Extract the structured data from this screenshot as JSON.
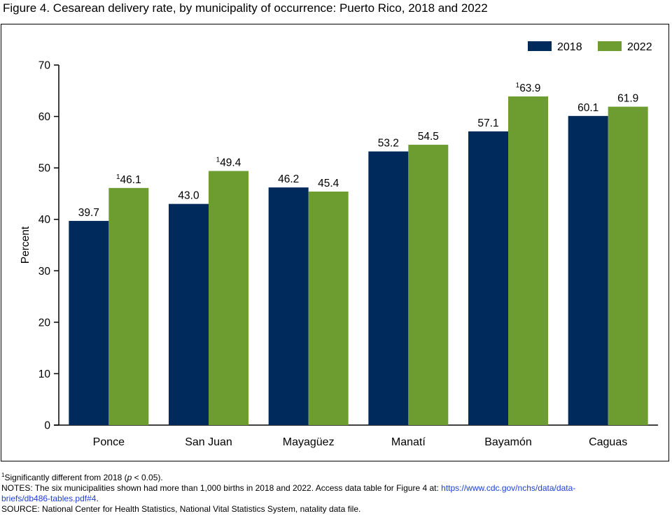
{
  "title": "Figure 4. Cesarean delivery rate, by municipality of occurrence: Puerto Rico, 2018 and 2022",
  "chart_data": {
    "type": "bar",
    "title": "Figure 4. Cesarean delivery rate, by municipality of occurrence: Puerto Rico, 2018 and 2022",
    "xlabel": "",
    "ylabel": "Percent",
    "ylim": [
      0,
      70
    ],
    "yticks": [
      0,
      10,
      20,
      30,
      40,
      50,
      60,
      70
    ],
    "grid": false,
    "legend_position": "top-right",
    "categories": [
      "Ponce",
      "San Juan",
      "Mayagüez",
      "Manatí",
      "Bayamón",
      "Caguas"
    ],
    "series": [
      {
        "name": "2018",
        "color": "#002a5c",
        "values": [
          39.7,
          43.0,
          46.2,
          53.2,
          57.1,
          60.1
        ],
        "labels": [
          "39.7",
          "43.0",
          "46.2",
          "53.2",
          "57.1",
          "60.1"
        ],
        "footnote_marks": [
          "",
          "",
          "",
          "",
          "",
          ""
        ]
      },
      {
        "name": "2022",
        "color": "#6d9c30",
        "values": [
          46.1,
          49.4,
          45.4,
          54.5,
          63.9,
          61.9
        ],
        "labels": [
          "46.1",
          "49.4",
          "45.4",
          "54.5",
          "63.9",
          "61.9"
        ],
        "footnote_marks": [
          "1",
          "1",
          "",
          "",
          "1",
          ""
        ]
      }
    ]
  },
  "notes": {
    "footnote_mark": "1",
    "footnote_pre": "Significantly different from 2018 (",
    "footnote_italic": "p",
    "footnote_post": " < 0.05).",
    "notes_line1_text": "NOTES: The six municipalities shown had more than 1,000 births in 2018 and 2022. Access data table for Figure 4 at: ",
    "notes_link_part1": "https://www.cdc.gov/nchs/data/data-",
    "notes_link_part2": "briefs/db486-tables.pdf#4",
    "notes_line2_post": ".",
    "source": "SOURCE: National Center for Health Statistics, National Vital Statistics System, natality data file."
  }
}
